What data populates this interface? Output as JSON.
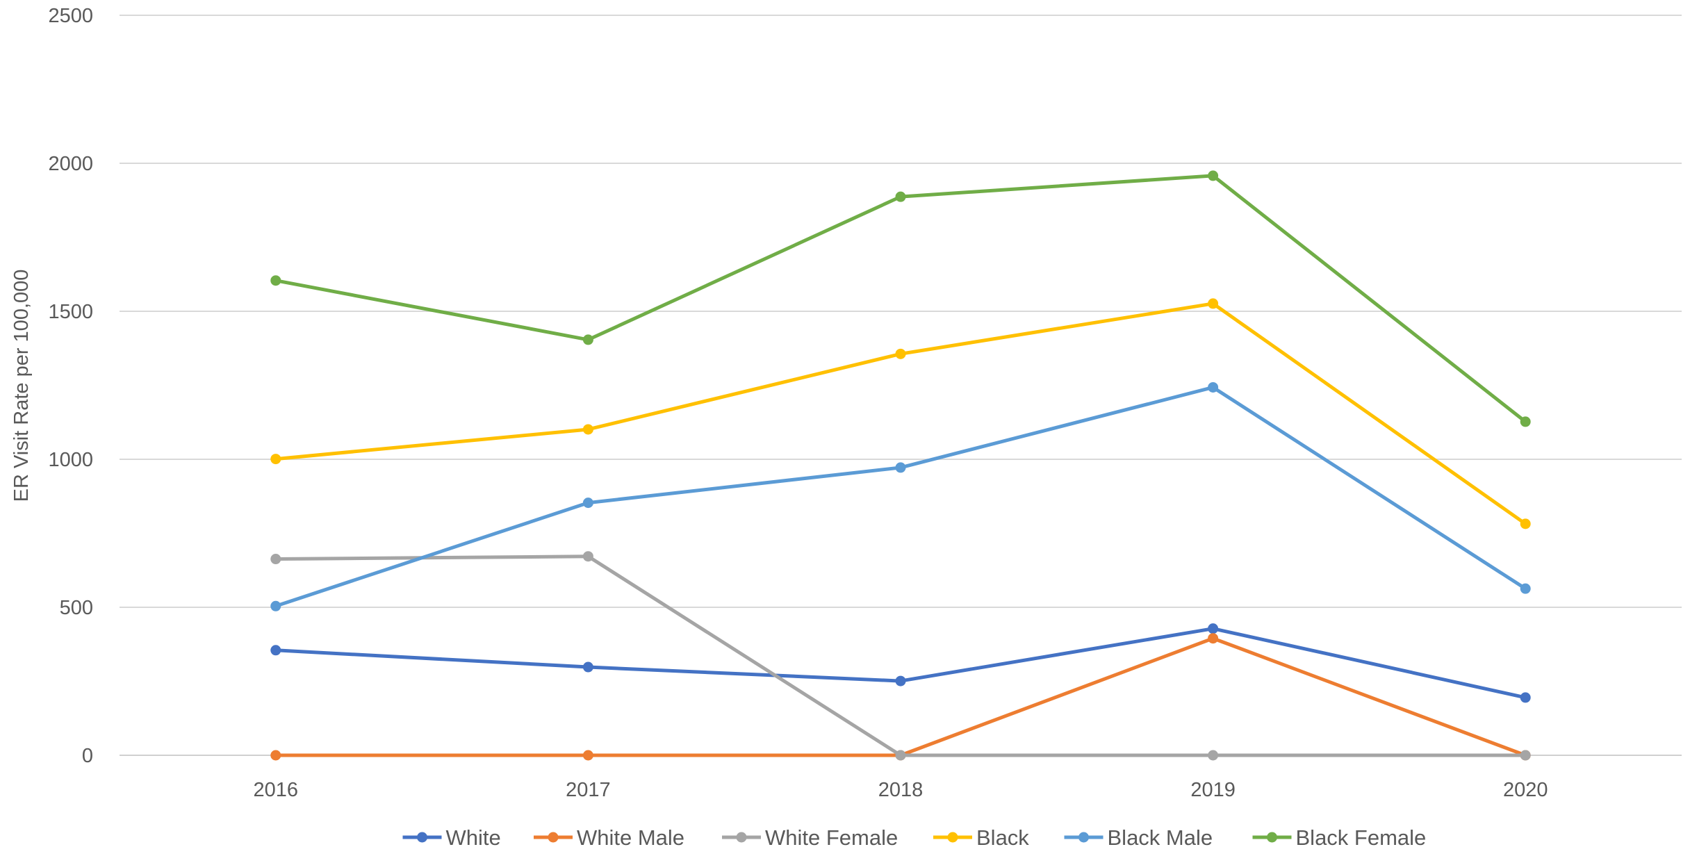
{
  "chart_data": {
    "type": "line",
    "title": "",
    "xlabel": "",
    "ylabel": "ER Visit Rate per 100,000",
    "categories": [
      "2016",
      "2017",
      "2018",
      "2019",
      "2020"
    ],
    "ylim": [
      0,
      2500
    ],
    "yticks": [
      0,
      500,
      1000,
      1500,
      2000,
      2500
    ],
    "grid": true,
    "legend_position": "bottom",
    "series": [
      {
        "name": "White",
        "color": "#4472C4",
        "values": [
          355,
          298,
          251,
          428,
          195
        ]
      },
      {
        "name": "White Male",
        "color": "#ED7D31",
        "values": [
          0,
          0,
          0,
          395,
          0
        ]
      },
      {
        "name": "White Female",
        "color": "#A5A5A5",
        "values": [
          663,
          672,
          0,
          0,
          0
        ]
      },
      {
        "name": "Black",
        "color": "#FFC000",
        "values": [
          1001,
          1101,
          1356,
          1526,
          782
        ]
      },
      {
        "name": "Black Male",
        "color": "#5B9BD5",
        "values": [
          504,
          853,
          972,
          1243,
          563
        ]
      },
      {
        "name": "Black Female",
        "color": "#70AD47",
        "values": [
          1604,
          1404,
          1887,
          1958,
          1127
        ]
      }
    ]
  }
}
